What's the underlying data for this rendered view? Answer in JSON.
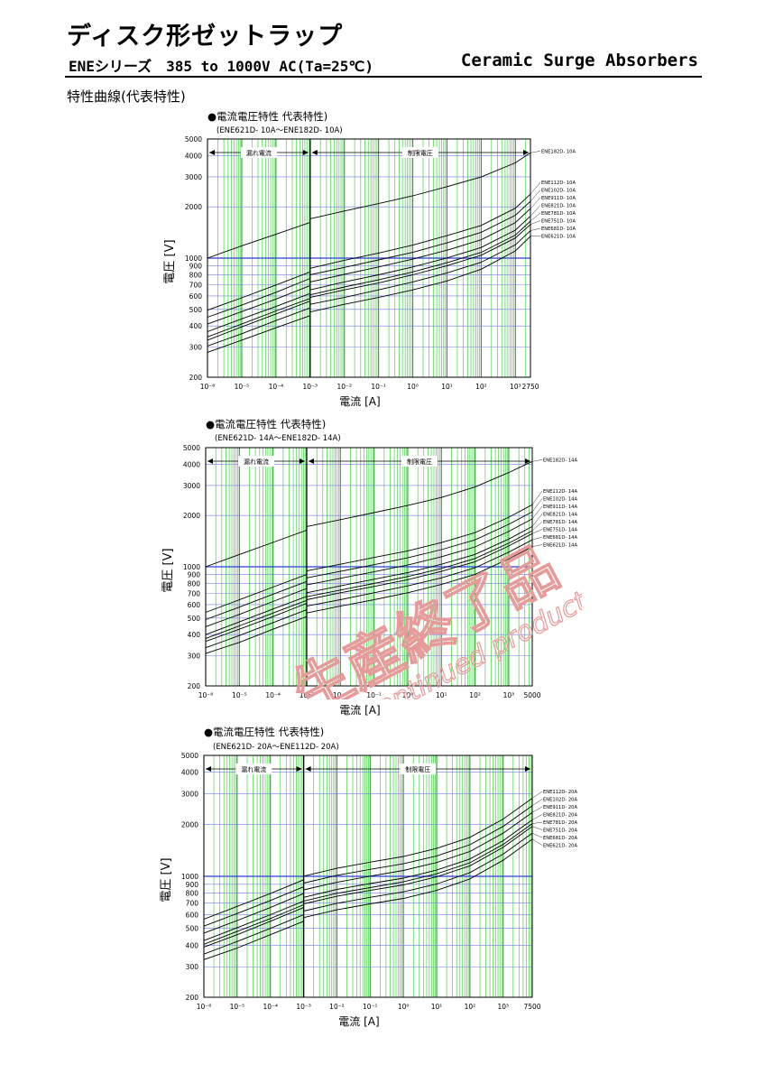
{
  "header": {
    "title": "ディスク形ゼットラップ",
    "subtitle": "ENEシリーズ　385 to 1000V AC(Ta=25℃)",
    "right_title": "Ceramic Surge Absorbers"
  },
  "section_title": "特性曲線(代表特性)",
  "watermark": {
    "jp_text": "生産終了品",
    "en_text": "Discontinued product."
  },
  "chart_data": [
    {
      "type": "line",
      "title": "●電流電圧特性 代表特性)",
      "subtitle": "(ENE621D- 10A～ENE182D- 10A)",
      "xlabel": "電流 [A]",
      "ylabel": "電圧 [V]",
      "x_scale": "log",
      "y_scale": "log",
      "xlim": [
        1e-06,
        2750
      ],
      "ylim": [
        200,
        5000
      ],
      "x_ticks": [
        "10⁻⁶",
        "10⁻⁵",
        "10⁻⁴",
        "10⁻³",
        "10⁻²",
        "10⁻¹",
        "10⁰",
        "10¹",
        "10²",
        "10³",
        "2750"
      ],
      "y_ticks": [
        "200",
        "300",
        "400",
        "500",
        "600",
        "700",
        "800",
        "900",
        "1000",
        "2000",
        "3000",
        "4000",
        "5000"
      ],
      "region_labels": [
        "漏れ電流",
        "制限電圧"
      ],
      "series": [
        {
          "name": "ENE621D- 10A",
          "x": [
            1e-06,
            1e-05,
            0.0001,
            0.001,
            0.01,
            0.1,
            1,
            10,
            100,
            1000,
            2750
          ],
          "y": [
            280,
            330,
            390,
            460,
            510,
            560,
            620,
            700,
            820,
            1050,
            1280
          ]
        },
        {
          "name": "ENE681D- 10A",
          "x": [
            1e-06,
            1e-05,
            0.0001,
            0.001,
            0.01,
            0.1,
            1,
            10,
            100,
            1000,
            2750
          ],
          "y": [
            305,
            360,
            430,
            510,
            560,
            620,
            690,
            780,
            900,
            1140,
            1380
          ]
        },
        {
          "name": "ENE751D- 10A",
          "x": [
            1e-06,
            1e-05,
            0.0001,
            0.001,
            0.01,
            0.1,
            1,
            10,
            100,
            1000,
            2750
          ],
          "y": [
            330,
            395,
            470,
            560,
            620,
            680,
            760,
            860,
            990,
            1250,
            1500
          ]
        },
        {
          "name": "ENE781D- 10A",
          "x": [
            1e-06,
            1e-05,
            0.0001,
            0.001,
            0.01,
            0.1,
            1,
            10,
            100,
            1000,
            2750
          ],
          "y": [
            345,
            410,
            490,
            580,
            645,
            710,
            790,
            895,
            1030,
            1300,
            1570
          ]
        },
        {
          "name": "ENE821D- 10A",
          "x": [
            1e-06,
            1e-05,
            0.0001,
            0.001,
            0.01,
            0.1,
            1,
            10,
            100,
            1000,
            2750
          ],
          "y": [
            370,
            440,
            520,
            620,
            690,
            760,
            845,
            955,
            1100,
            1390,
            1680
          ]
        },
        {
          "name": "ENE911D- 10A",
          "x": [
            1e-06,
            1e-05,
            0.0001,
            0.001,
            0.01,
            0.1,
            1,
            10,
            100,
            1000,
            2750
          ],
          "y": [
            410,
            485,
            575,
            690,
            765,
            845,
            940,
            1060,
            1220,
            1540,
            1860
          ]
        },
        {
          "name": "ENE102D- 10A",
          "x": [
            1e-06,
            1e-05,
            0.0001,
            0.001,
            0.01,
            0.1,
            1,
            10,
            100,
            1000,
            2750
          ],
          "y": [
            450,
            530,
            630,
            760,
            840,
            930,
            1030,
            1170,
            1350,
            1700,
            2050
          ]
        },
        {
          "name": "ENE112D- 10A",
          "x": [
            1e-06,
            1e-05,
            0.0001,
            0.001,
            0.01,
            0.1,
            1,
            10,
            100,
            1000,
            2750
          ],
          "y": [
            495,
            585,
            695,
            830,
            925,
            1020,
            1135,
            1290,
            1480,
            1870,
            2260
          ]
        },
        {
          "name": "ENE182D- 10A",
          "x": [
            1e-06,
            1e-05,
            0.0001,
            0.001,
            0.01,
            0.1,
            1,
            10,
            100,
            1000,
            2750
          ],
          "y": [
            1000,
            1180,
            1380,
            1620,
            1800,
            1990,
            2210,
            2500,
            2850,
            3450,
            3950
          ]
        }
      ]
    },
    {
      "type": "line",
      "title": "●電流電圧特性 代表特性)",
      "subtitle": "(ENE621D- 14A～ENE182D- 14A)",
      "xlabel": "電流 [A]",
      "ylabel": "電圧 [V]",
      "x_scale": "log",
      "y_scale": "log",
      "xlim": [
        1e-06,
        5000
      ],
      "ylim": [
        200,
        5000
      ],
      "x_ticks": [
        "10⁻⁶",
        "10⁻⁵",
        "10⁻⁴",
        "10⁻³",
        "10⁻²",
        "10⁻¹",
        "10⁰",
        "10¹",
        "10²",
        "10³",
        "5000"
      ],
      "y_ticks": [
        "200",
        "300",
        "400",
        "500",
        "600",
        "700",
        "800",
        "900",
        "1000",
        "2000",
        "3000",
        "4000",
        "5000"
      ],
      "region_labels": [
        "漏れ電流",
        "制限電圧"
      ],
      "series": [
        {
          "name": "ENE621D- 14A",
          "x": [
            1e-06,
            1e-05,
            0.0001,
            0.001,
            0.01,
            0.1,
            1,
            10,
            100,
            1000,
            5000
          ],
          "y": [
            310,
            360,
            430,
            510,
            560,
            610,
            670,
            750,
            860,
            1060,
            1250
          ]
        },
        {
          "name": "ENE681D- 14A",
          "x": [
            1e-06,
            1e-05,
            0.0001,
            0.001,
            0.01,
            0.1,
            1,
            10,
            100,
            1000,
            5000
          ],
          "y": [
            335,
            395,
            470,
            560,
            610,
            670,
            735,
            820,
            940,
            1160,
            1370
          ]
        },
        {
          "name": "ENE751D- 14A",
          "x": [
            1e-06,
            1e-05,
            0.0001,
            0.001,
            0.01,
            0.1,
            1,
            10,
            100,
            1000,
            5000
          ],
          "y": [
            365,
            430,
            510,
            610,
            670,
            730,
            800,
            895,
            1020,
            1260,
            1490
          ]
        },
        {
          "name": "ENE781D- 14A",
          "x": [
            1e-06,
            1e-05,
            0.0001,
            0.001,
            0.01,
            0.1,
            1,
            10,
            100,
            1000,
            5000
          ],
          "y": [
            380,
            450,
            535,
            635,
            695,
            760,
            835,
            930,
            1065,
            1310,
            1550
          ]
        },
        {
          "name": "ENE821D- 14A",
          "x": [
            1e-06,
            1e-05,
            0.0001,
            0.001,
            0.01,
            0.1,
            1,
            10,
            100,
            1000,
            5000
          ],
          "y": [
            400,
            475,
            565,
            670,
            735,
            805,
            880,
            985,
            1125,
            1385,
            1640
          ]
        },
        {
          "name": "ENE911D- 14A",
          "x": [
            1e-06,
            1e-05,
            0.0001,
            0.001,
            0.01,
            0.1,
            1,
            10,
            100,
            1000,
            5000
          ],
          "y": [
            445,
            525,
            625,
            745,
            815,
            890,
            975,
            1090,
            1245,
            1535,
            1820
          ]
        },
        {
          "name": "ENE102D- 14A",
          "x": [
            1e-06,
            1e-05,
            0.0001,
            0.001,
            0.01,
            0.1,
            1,
            10,
            100,
            1000,
            5000
          ],
          "y": [
            490,
            580,
            690,
            820,
            895,
            980,
            1075,
            1200,
            1370,
            1690,
            2000
          ]
        },
        {
          "name": "ENE112D- 14A",
          "x": [
            1e-06,
            1e-05,
            0.0001,
            0.001,
            0.01,
            0.1,
            1,
            10,
            100,
            1000,
            5000
          ],
          "y": [
            540,
            640,
            760,
            900,
            985,
            1080,
            1180,
            1320,
            1510,
            1860,
            2200
          ]
        },
        {
          "name": "ENE182D- 14A",
          "x": [
            1e-06,
            1e-05,
            0.0001,
            0.001,
            0.01,
            0.1,
            1,
            10,
            100,
            1000,
            5000
          ],
          "y": [
            1000,
            1180,
            1390,
            1640,
            1800,
            1980,
            2180,
            2430,
            2800,
            3400,
            3950
          ]
        }
      ]
    },
    {
      "type": "line",
      "title": "●電流電圧特性 代表特性)",
      "subtitle": "(ENE621D- 20A～ENE112D- 20A)",
      "xlabel": "電流 [A]",
      "ylabel": "電圧 [V]",
      "x_scale": "log",
      "y_scale": "log",
      "xlim": [
        1e-06,
        7500
      ],
      "ylim": [
        200,
        5000
      ],
      "x_ticks": [
        "10⁻⁶",
        "10⁻⁵",
        "10⁻⁴",
        "10⁻³",
        "10⁻²",
        "10⁻¹",
        "10⁰",
        "10¹",
        "10²",
        "10³",
        "7500"
      ],
      "y_ticks": [
        "200",
        "300",
        "400",
        "500",
        "600",
        "700",
        "800",
        "900",
        "1000",
        "2000",
        "3000",
        "4000",
        "5000"
      ],
      "region_labels": [
        "漏れ電流",
        "制限電圧"
      ],
      "series": [
        {
          "name": "ENE621D- 20A",
          "x": [
            1e-06,
            1e-05,
            0.0001,
            0.001,
            0.01,
            0.1,
            1,
            10,
            100,
            1000,
            7500
          ],
          "y": [
            330,
            385,
            460,
            550,
            610,
            660,
            710,
            790,
            920,
            1180,
            1560
          ]
        },
        {
          "name": "ENE681D- 20A",
          "x": [
            1e-06,
            1e-05,
            0.0001,
            0.001,
            0.01,
            0.1,
            1,
            10,
            100,
            1000,
            7500
          ],
          "y": [
            355,
            420,
            500,
            600,
            665,
            720,
            775,
            860,
            1000,
            1280,
            1690
          ]
        },
        {
          "name": "ENE751D- 20A",
          "x": [
            1e-06,
            1e-05,
            0.0001,
            0.001,
            0.01,
            0.1,
            1,
            10,
            100,
            1000,
            7500
          ],
          "y": [
            390,
            460,
            550,
            660,
            730,
            790,
            850,
            945,
            1095,
            1400,
            1850
          ]
        },
        {
          "name": "ENE781D- 20A",
          "x": [
            1e-06,
            1e-05,
            0.0001,
            0.001,
            0.01,
            0.1,
            1,
            10,
            100,
            1000,
            7500
          ],
          "y": [
            405,
            480,
            570,
            685,
            760,
            820,
            885,
            985,
            1140,
            1455,
            1920
          ]
        },
        {
          "name": "ENE821D- 20A",
          "x": [
            1e-06,
            1e-05,
            0.0001,
            0.001,
            0.01,
            0.1,
            1,
            10,
            100,
            1000,
            7500
          ],
          "y": [
            425,
            505,
            600,
            720,
            800,
            865,
            930,
            1035,
            1200,
            1530,
            2020
          ]
        },
        {
          "name": "ENE911D- 20A",
          "x": [
            1e-06,
            1e-05,
            0.0001,
            0.001,
            0.01,
            0.1,
            1,
            10,
            100,
            1000,
            7500
          ],
          "y": [
            470,
            555,
            660,
            795,
            880,
            955,
            1030,
            1145,
            1325,
            1690,
            2230
          ]
        },
        {
          "name": "ENE102D- 20A",
          "x": [
            1e-06,
            1e-05,
            0.0001,
            0.001,
            0.01,
            0.1,
            1,
            10,
            100,
            1000,
            7500
          ],
          "y": [
            515,
            610,
            725,
            870,
            965,
            1045,
            1125,
            1250,
            1450,
            1850,
            2440
          ]
        },
        {
          "name": "ENE112D- 20A",
          "x": [
            1e-06,
            1e-05,
            0.0001,
            0.001,
            0.01,
            0.1,
            1,
            10,
            100,
            1000,
            7500
          ],
          "y": [
            565,
            670,
            795,
            955,
            1060,
            1150,
            1240,
            1380,
            1600,
            2040,
            2690
          ]
        }
      ]
    }
  ]
}
